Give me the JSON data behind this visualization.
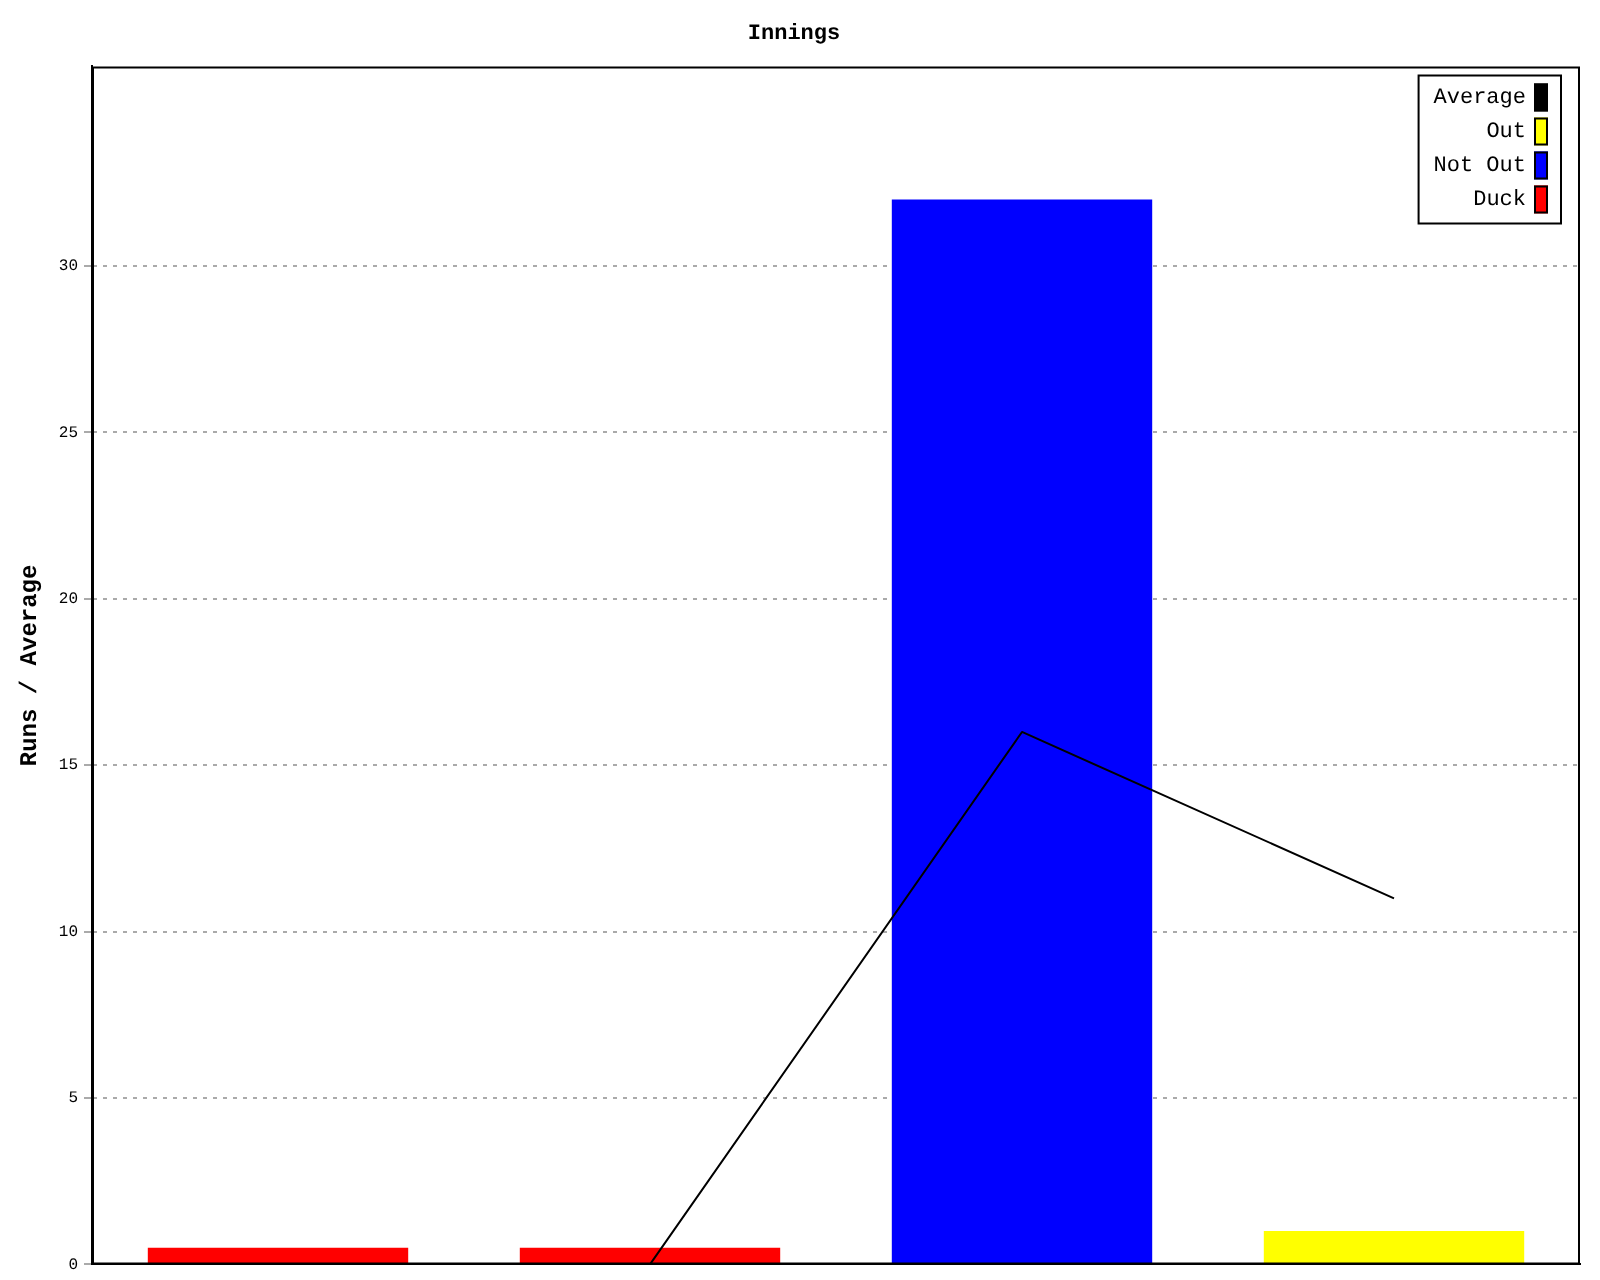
{
  "chart_data": {
    "type": "bar",
    "title": "Innings",
    "ylabel": "Runs / Average",
    "categories": [
      null,
      null,
      null,
      null
    ],
    "stacked": true,
    "series": [
      {
        "name": "Duck",
        "color": "#ff0000",
        "values": [
          0.5,
          0.5,
          null,
          null
        ]
      },
      {
        "name": "Not Out",
        "color": "#0000ff",
        "values": [
          null,
          null,
          32,
          null
        ]
      },
      {
        "name": "Out",
        "color": "#ffff00",
        "values": [
          null,
          null,
          null,
          1
        ]
      },
      {
        "name": "Average",
        "type": "line",
        "color": "#000000",
        "values": [
          null,
          0,
          16,
          11
        ]
      }
    ],
    "ylim": [
      0,
      36
    ],
    "yticks": [
      0,
      5,
      10,
      15,
      20,
      25,
      30
    ],
    "grid": "y",
    "legend": "top right",
    "tick_labels": "y",
    "marker": "none"
  }
}
